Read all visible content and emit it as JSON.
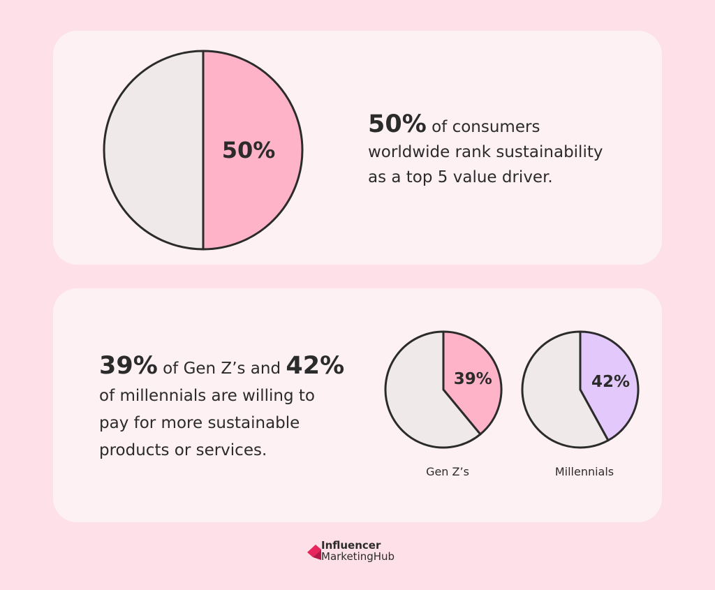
{
  "chart_data": [
    {
      "type": "pie",
      "name": "consumers",
      "slices": [
        {
          "label": "50%",
          "value": 50,
          "color": "#ffb3c9"
        },
        {
          "label": "",
          "value": 50,
          "color": "#efe9e9"
        }
      ],
      "title": ""
    },
    {
      "type": "pie",
      "name": "Gen Z's",
      "caption": "Gen Z’s",
      "slices": [
        {
          "label": "39%",
          "value": 39,
          "color": "#ffb3c9"
        },
        {
          "label": "",
          "value": 61,
          "color": "#efe9e9"
        }
      ]
    },
    {
      "type": "pie",
      "name": "Millennials",
      "caption": "Millennials",
      "slices": [
        {
          "label": "42%",
          "value": 42,
          "color": "#e3c9fb"
        },
        {
          "label": "",
          "value": 58,
          "color": "#efe9e9"
        }
      ]
    }
  ],
  "stat1": {
    "big": "50%",
    "rest_line1": " of consumers",
    "line2": "worldwide rank sustainability",
    "line3": "as a top 5 value driver."
  },
  "stat2": {
    "big1": "39%",
    "mid": " of Gen Z’s and ",
    "big2": "42%",
    "line2": "of millennials are willing to",
    "line3": "pay for more sustainable",
    "line4": "products or services."
  },
  "logo": {
    "line1": "Influencer",
    "line2": "MarketingHub",
    "colors": {
      "mark_main": "#e8265e",
      "mark_dark": "#b51846"
    }
  },
  "colors": {
    "background": "#fde0e8",
    "card": "#fdf1f4",
    "outline": "#2b2b2b"
  }
}
